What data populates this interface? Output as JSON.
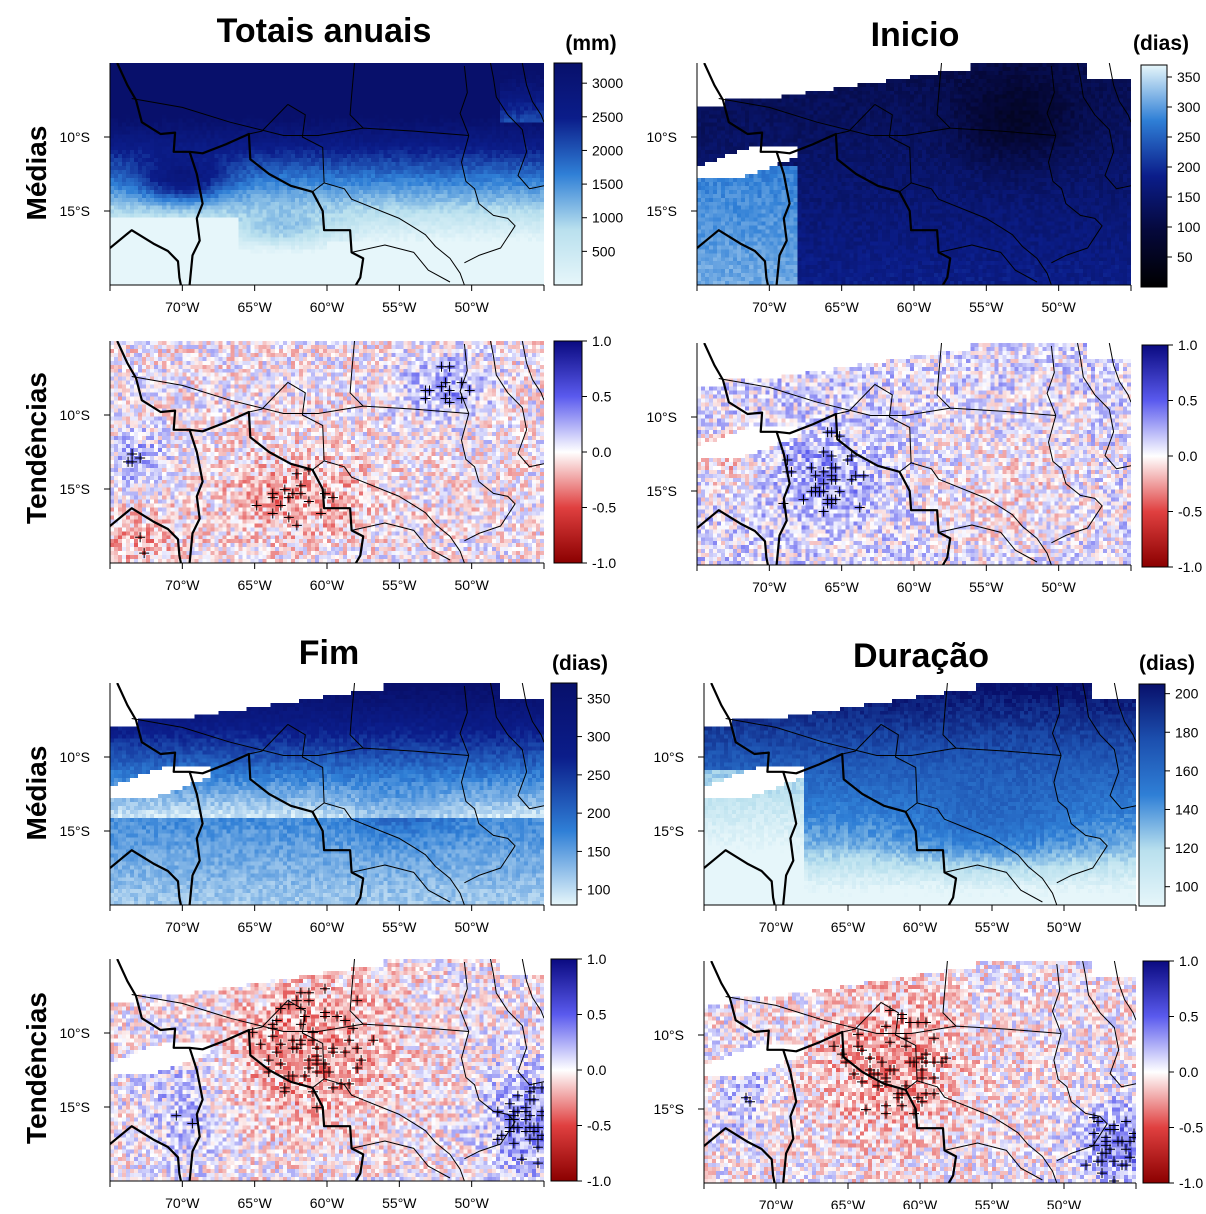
{
  "titles": {
    "totais": "Totais anuais",
    "inicio": "Inicio",
    "fim": "Fim",
    "duracao": "Duração"
  },
  "row_labels": {
    "medias": "Médias",
    "tendencias": "Tendências"
  },
  "axis": {
    "x_ticks": [
      "70°W",
      "65°W",
      "60°W",
      "55°W",
      "50°W"
    ],
    "y_ticks": [
      "10°S",
      "15°S"
    ],
    "x_values": [
      -70,
      -65,
      -60,
      -55,
      -50
    ],
    "y_values": [
      -10,
      -15
    ],
    "lon_range": [
      -75,
      -45
    ],
    "lat_range": [
      -20,
      -5
    ]
  },
  "colors": {
    "dark_blue": "#08106b",
    "mid_blue": "#2f7fd6",
    "light_blue": "#e6f6fa",
    "white": "#ffffff",
    "red": "#e04040",
    "dark_red": "#8b0000",
    "trend_blue": "#0a0ab0"
  },
  "chart_data": [
    {
      "id": "totais_medias",
      "type": "heatmap",
      "title": "Totais anuais",
      "unit": "(mm)",
      "colorbar_range": [
        0,
        3300
      ],
      "colorbar_ticks": [
        "500",
        "1000",
        "1500",
        "2000",
        "2500",
        "3000"
      ],
      "colorbar_values": [
        500,
        1000,
        1500,
        2000,
        2500,
        3000
      ],
      "palette": [
        "#e6f6fa",
        "#b9e0ee",
        "#2f7fd6",
        "#0b1d8a",
        "#08106b"
      ]
    },
    {
      "id": "totais_tendencias",
      "type": "heatmap",
      "unit": "",
      "colorbar_range": [
        -1.0,
        1.0
      ],
      "colorbar_ticks": [
        "-1.0",
        "-0.5",
        "0.0",
        "0.5",
        "1.0"
      ],
      "colorbar_values": [
        -1.0,
        -0.5,
        0.0,
        0.5,
        1.0
      ],
      "palette": [
        "#8b0000",
        "#e04040",
        "#ffffff",
        "#5a5aee",
        "#0a0a80"
      ]
    },
    {
      "id": "inicio_medias",
      "type": "heatmap",
      "title": "Inicio",
      "unit": "(dias)",
      "colorbar_range": [
        0,
        370
      ],
      "colorbar_ticks": [
        "50",
        "100",
        "150",
        "200",
        "250",
        "300",
        "350"
      ],
      "colorbar_values": [
        50,
        100,
        150,
        200,
        250,
        300,
        350
      ],
      "palette": [
        "#000000",
        "#05083a",
        "#0b1d8a",
        "#2f7fd6",
        "#e6f6fa"
      ]
    },
    {
      "id": "inicio_tendencias",
      "type": "heatmap",
      "unit": "",
      "colorbar_range": [
        -1.0,
        1.0
      ],
      "colorbar_ticks": [
        "-1.0",
        "-0.5",
        "0.0",
        "0.5",
        "1.0"
      ],
      "colorbar_values": [
        -1.0,
        -0.5,
        0.0,
        0.5,
        1.0
      ],
      "palette": [
        "#8b0000",
        "#e04040",
        "#ffffff",
        "#5a5aee",
        "#0a0a80"
      ]
    },
    {
      "id": "fim_medias",
      "type": "heatmap",
      "title": "Fim",
      "unit": "(dias)",
      "colorbar_range": [
        80,
        370
      ],
      "colorbar_ticks": [
        "100",
        "150",
        "200",
        "250",
        "300",
        "350"
      ],
      "colorbar_values": [
        100,
        150,
        200,
        250,
        300,
        350
      ],
      "palette": [
        "#e6f6fa",
        "#2f7fd6",
        "#0b1d8a",
        "#08106b"
      ]
    },
    {
      "id": "fim_tendencias",
      "type": "heatmap",
      "unit": "",
      "colorbar_range": [
        -1.0,
        1.0
      ],
      "colorbar_ticks": [
        "-1.0",
        "-0.5",
        "0.0",
        "0.5",
        "1.0"
      ],
      "colorbar_values": [
        -1.0,
        -0.5,
        0.0,
        0.5,
        1.0
      ],
      "palette": [
        "#8b0000",
        "#e04040",
        "#ffffff",
        "#5a5aee",
        "#0a0a80"
      ]
    },
    {
      "id": "duracao_medias",
      "type": "heatmap",
      "title": "Duração",
      "unit": "(dias)",
      "colorbar_range": [
        90,
        205
      ],
      "colorbar_ticks": [
        "100",
        "120",
        "140",
        "160",
        "180",
        "200"
      ],
      "colorbar_values": [
        100,
        120,
        140,
        160,
        180,
        200
      ],
      "palette": [
        "#e6f6fa",
        "#b9e0ee",
        "#2f7fd6",
        "#1c4fae",
        "#08106b"
      ]
    },
    {
      "id": "duracao_tendencias",
      "type": "heatmap",
      "unit": "",
      "colorbar_range": [
        -1.0,
        1.0
      ],
      "colorbar_ticks": [
        "-1.0",
        "-0.5",
        "0.0",
        "0.5",
        "1.0"
      ],
      "colorbar_values": [
        -1.0,
        -0.5,
        0.0,
        0.5,
        1.0
      ],
      "palette": [
        "#8b0000",
        "#e04040",
        "#ffffff",
        "#5a5aee",
        "#0a0a80"
      ]
    }
  ]
}
